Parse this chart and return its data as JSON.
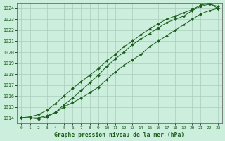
{
  "xlabel": "Graphe pression niveau de la mer (hPa)",
  "xlim": [
    -0.5,
    23.5
  ],
  "ylim": [
    1013.5,
    1024.5
  ],
  "yticks": [
    1014,
    1015,
    1016,
    1017,
    1018,
    1019,
    1020,
    1021,
    1022,
    1023,
    1024
  ],
  "xticks": [
    0,
    1,
    2,
    3,
    4,
    5,
    6,
    7,
    8,
    9,
    10,
    11,
    12,
    13,
    14,
    15,
    16,
    17,
    18,
    19,
    20,
    21,
    22,
    23
  ],
  "line_color": "#1a5c1a",
  "bg_color": "#cceedd",
  "grid_color": "#aaccbb",
  "series": [
    {
      "x": [
        0,
        1,
        2,
        3,
        4,
        5,
        6,
        7,
        8,
        9,
        10,
        11,
        12,
        13,
        14,
        15,
        16,
        17,
        18,
        19,
        20,
        21,
        22,
        23
      ],
      "y": [
        1014.0,
        1014.0,
        1014.0,
        1014.2,
        1014.5,
        1015.0,
        1015.4,
        1015.8,
        1016.3,
        1016.8,
        1017.5,
        1018.2,
        1018.8,
        1019.3,
        1019.8,
        1020.5,
        1021.0,
        1021.5,
        1022.0,
        1022.5,
        1023.0,
        1023.5,
        1023.8,
        1024.0
      ]
    },
    {
      "x": [
        0,
        1,
        2,
        3,
        4,
        5,
        6,
        7,
        8,
        9,
        10,
        11,
        12,
        13,
        14,
        15,
        16,
        17,
        18,
        19,
        20,
        21,
        22,
        23
      ],
      "y": [
        1014.0,
        1014.0,
        1013.9,
        1014.1,
        1014.5,
        1015.2,
        1015.8,
        1016.5,
        1017.2,
        1017.9,
        1018.7,
        1019.4,
        1020.0,
        1020.7,
        1021.2,
        1021.7,
        1022.2,
        1022.7,
        1023.0,
        1023.3,
        1023.8,
        1024.2,
        1024.4,
        1024.2
      ]
    },
    {
      "x": [
        0,
        1,
        2,
        3,
        4,
        5,
        6,
        7,
        8,
        9,
        10,
        11,
        12,
        13,
        14,
        15,
        16,
        17,
        18,
        19,
        20,
        21,
        22,
        23
      ],
      "y": [
        1014.0,
        1014.1,
        1014.3,
        1014.7,
        1015.3,
        1016.0,
        1016.7,
        1017.3,
        1017.9,
        1018.5,
        1019.2,
        1019.8,
        1020.5,
        1021.0,
        1021.6,
        1022.1,
        1022.6,
        1023.0,
        1023.3,
        1023.6,
        1023.9,
        1024.3,
        1024.5,
        1024.0
      ]
    }
  ]
}
